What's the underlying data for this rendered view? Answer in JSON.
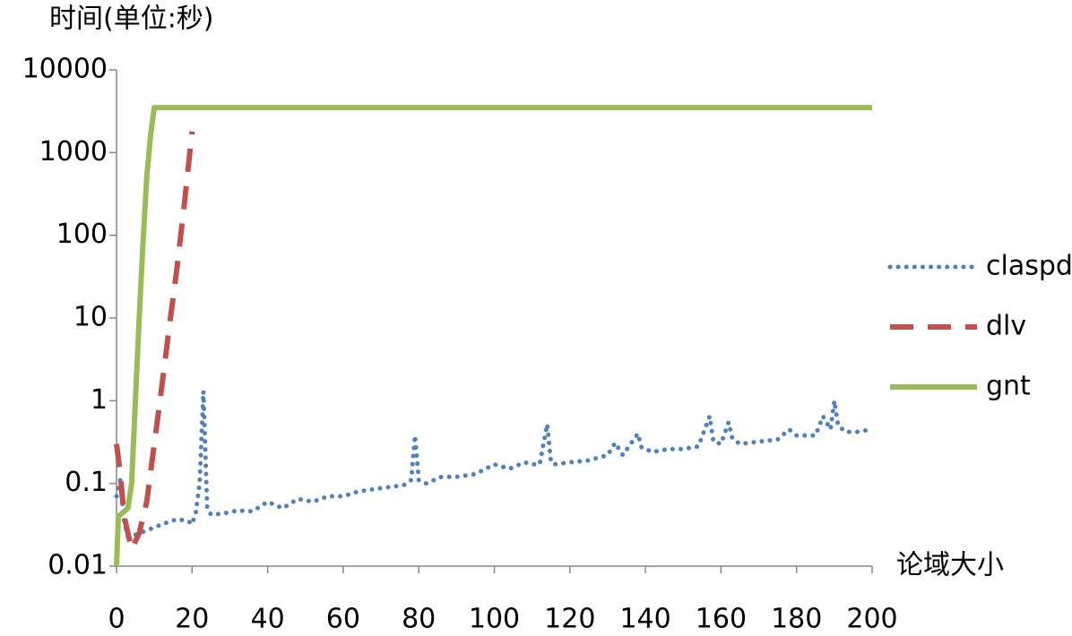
{
  "chart_data": {
    "type": "line",
    "y_label": "时间(单位:秒)",
    "x_label": "论域大小",
    "xlim": [
      0,
      200
    ],
    "xticks": [
      0,
      20,
      40,
      60,
      80,
      100,
      120,
      140,
      160,
      180,
      200
    ],
    "ylim": [
      0.01,
      10000
    ],
    "yticks": [
      0.01,
      0.1,
      1,
      10,
      100,
      1000,
      10000
    ],
    "log_y": true,
    "grid": false,
    "legend": "right",
    "series": [
      {
        "name": "claspd",
        "color": "#4f81bd",
        "style": "dotted",
        "x": [
          0,
          1,
          2,
          3,
          5,
          8,
          12,
          16,
          19,
          20,
          21,
          22,
          23,
          24,
          25,
          28,
          32,
          36,
          40,
          44,
          48,
          52,
          56,
          60,
          64,
          68,
          72,
          76,
          78,
          79,
          80,
          82,
          86,
          90,
          95,
          100,
          102,
          104,
          108,
          110,
          112,
          114,
          115,
          116,
          120,
          125,
          130,
          132,
          134,
          138,
          139,
          142,
          146,
          150,
          154,
          157,
          158,
          160,
          162,
          163,
          165,
          170,
          175,
          178,
          180,
          185,
          187,
          189,
          190,
          191,
          193,
          196,
          200
        ],
        "values": [
          0.07,
          0.11,
          0.035,
          0.023,
          0.024,
          0.027,
          0.032,
          0.037,
          0.035,
          0.032,
          0.045,
          0.1,
          1.3,
          0.05,
          0.042,
          0.043,
          0.047,
          0.046,
          0.06,
          0.05,
          0.065,
          0.06,
          0.07,
          0.07,
          0.08,
          0.085,
          0.09,
          0.095,
          0.11,
          0.38,
          0.11,
          0.1,
          0.12,
          0.12,
          0.13,
          0.17,
          0.16,
          0.15,
          0.18,
          0.17,
          0.17,
          0.52,
          0.18,
          0.17,
          0.18,
          0.19,
          0.22,
          0.31,
          0.22,
          0.4,
          0.27,
          0.24,
          0.26,
          0.26,
          0.28,
          0.65,
          0.32,
          0.3,
          0.55,
          0.35,
          0.3,
          0.32,
          0.34,
          0.45,
          0.38,
          0.38,
          0.65,
          0.45,
          1.0,
          0.5,
          0.42,
          0.42,
          0.45
        ]
      },
      {
        "name": "dlv",
        "color": "#c0504d",
        "style": "dashed",
        "x": [
          0,
          1,
          2,
          4,
          6,
          8,
          10,
          12,
          14,
          16,
          18,
          20
        ],
        "values": [
          0.3,
          0.13,
          0.04,
          0.016,
          0.025,
          0.06,
          0.3,
          1.5,
          8,
          40,
          250,
          1800
        ]
      },
      {
        "name": "gnt",
        "color": "#9bbb59",
        "style": "solid",
        "x": [
          0,
          0.5,
          3,
          4,
          5,
          6,
          7,
          8,
          9,
          10,
          200
        ],
        "values": [
          0.01,
          0.04,
          0.05,
          0.1,
          1,
          10,
          80,
          500,
          1600,
          3500,
          3500
        ]
      }
    ]
  }
}
